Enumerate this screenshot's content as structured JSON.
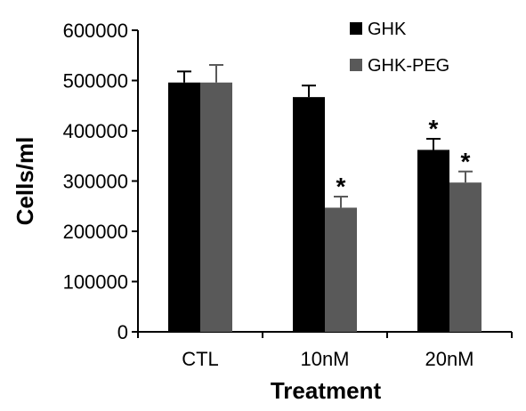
{
  "chart_data": {
    "type": "bar",
    "title": "",
    "xlabel": "Treatment",
    "ylabel": "Cells/ml",
    "categories": [
      "CTL",
      "10nM",
      "20nM"
    ],
    "ylim": [
      0,
      600000
    ],
    "yticks": [
      "0",
      "100000",
      "200000",
      "300000",
      "400000",
      "500000",
      "600000"
    ],
    "legend_position": "top-right",
    "series": [
      {
        "name": "GHK",
        "color": "#000000",
        "values": [
          496000,
          467000,
          362000
        ],
        "errors": [
          22000,
          23000,
          22000
        ],
        "significance": [
          "",
          "",
          "*"
        ]
      },
      {
        "name": "GHK-PEG",
        "color": "#595959",
        "values": [
          496000,
          247000,
          297000
        ],
        "errors": [
          35000,
          22000,
          22000
        ],
        "significance": [
          "",
          "*",
          "*"
        ]
      }
    ]
  }
}
